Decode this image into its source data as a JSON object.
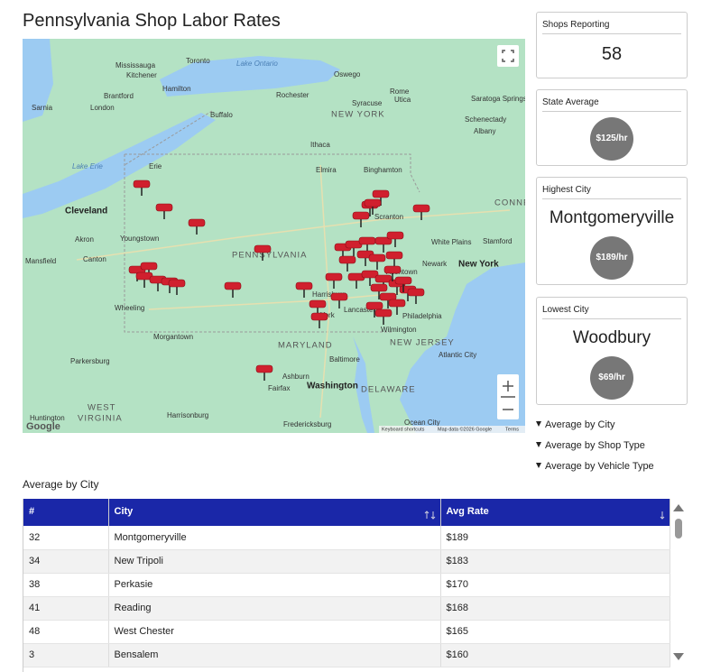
{
  "header": {
    "title": "Pennsylvania Shop Labor Rates"
  },
  "map": {
    "labels": [
      "Mississauga",
      "Toronto",
      "Kitchener",
      "Hamilton",
      "Brantford",
      "London",
      "Sarnia",
      "Lake Ontario",
      "Rochester",
      "Oswego",
      "Syracuse",
      "Rome",
      "Utica",
      "Saratoga Springs",
      "Schenectady",
      "Albany",
      "NEW YORK",
      "Buffalo",
      "Ithaca",
      "Elmira",
      "Binghamton",
      "Erie",
      "Lake Erie",
      "Cleveland",
      "Akron",
      "Youngstown",
      "Canton",
      "Mansfield",
      "Wheeling",
      "PENNSYLVANIA",
      "Scranton",
      "Allentown",
      "Harrisburg",
      "Lancaster",
      "York",
      "Philadelphia",
      "Wilmington",
      "Newark",
      "New York",
      "White Plains",
      "Stamford",
      "CONNE",
      "MARYLAND",
      "NEW JERSEY",
      "Baltimore",
      "Washington",
      "DELAWARE",
      "Atlantic City",
      "Ocean City",
      "Morgantown",
      "Parkersburg",
      "Ashburn",
      "Fairfax",
      "WEST",
      "VIRGINIA",
      "Harrisonburg",
      "Fredericksburg",
      "Huntington"
    ],
    "attribution": [
      "Keyboard shortcuts",
      "Map data ©2026 Google",
      "Terms"
    ],
    "logo": "Google"
  },
  "cards": [
    {
      "label": "Shops Reporting",
      "value": "58"
    },
    {
      "label": "State Average",
      "value": "$125/hr"
    },
    {
      "label": "Highest City",
      "city": "Montgomeryville",
      "value": "$189/hr"
    },
    {
      "label": "Lowest City",
      "city": "Woodbury",
      "value": "$69/hr"
    }
  ],
  "sections": [
    "Average by City",
    "Average by Shop Type",
    "Average by Vehicle Type"
  ],
  "table": {
    "caption": "Average by City",
    "columns": [
      "#",
      "City",
      "Avg Rate"
    ],
    "rows": [
      [
        "32",
        "Montgomeryville",
        "$189"
      ],
      [
        "34",
        "New Tripoli",
        "$183"
      ],
      [
        "38",
        "Perkasie",
        "$170"
      ],
      [
        "41",
        "Reading",
        "$168"
      ],
      [
        "48",
        "West Chester",
        "$165"
      ],
      [
        "3",
        "Bensalem",
        "$160"
      ]
    ]
  }
}
